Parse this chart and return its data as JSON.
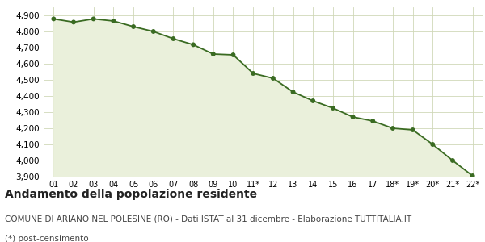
{
  "x_labels": [
    "01",
    "02",
    "03",
    "04",
    "05",
    "06",
    "07",
    "08",
    "09",
    "10",
    "11*",
    "12",
    "13",
    "14",
    "15",
    "16",
    "17",
    "18*",
    "19*",
    "20*",
    "21*",
    "22*"
  ],
  "y_values": [
    4878,
    4858,
    4878,
    4865,
    4830,
    4800,
    4755,
    4718,
    4660,
    4655,
    4540,
    4510,
    4425,
    4370,
    4325,
    4270,
    4245,
    4200,
    4190,
    4100,
    4000,
    3905
  ],
  "line_color": "#3a6b22",
  "fill_color": "#eaf0db",
  "marker_color": "#3a6b22",
  "bg_color": "#ffffff",
  "grid_color": "#d0d8b8",
  "ylim": [
    3900,
    4950
  ],
  "yticks": [
    3900,
    4000,
    4100,
    4200,
    4300,
    4400,
    4500,
    4600,
    4700,
    4800,
    4900
  ],
  "title": "Andamento della popolazione residente",
  "subtitle": "COMUNE DI ARIANO NEL POLESINE (RO) - Dati ISTAT al 31 dicembre - Elaborazione TUTTITALIA.IT",
  "footnote": "(*) post-censimento",
  "title_fontsize": 10,
  "subtitle_fontsize": 7.5,
  "footnote_fontsize": 7.5
}
